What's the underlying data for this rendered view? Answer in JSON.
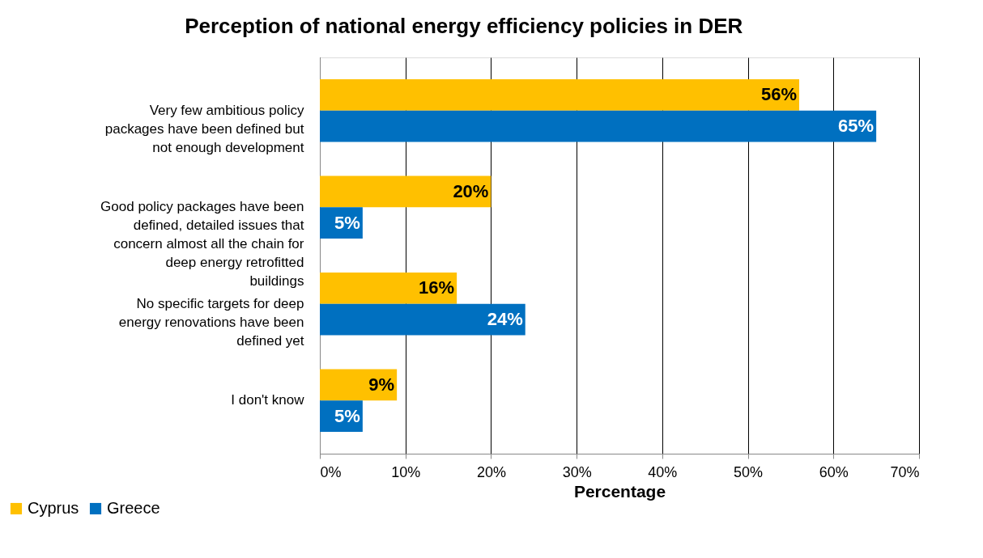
{
  "chart_data": {
    "type": "bar",
    "orientation": "horizontal",
    "title": "Perception of national energy efficiency policies in DER",
    "xlabel": "Percentage",
    "categories": [
      "Very few ambitious policy packages have been defined but not enough development",
      "Good policy packages have been defined, detailed issues that concern almost all the chain for deep energy retrofitted buildings",
      "No specific targets for deep energy renovations have been defined yet",
      "I don't know"
    ],
    "series": [
      {
        "name": "Cyprus",
        "color": "#ffc000",
        "values": [
          56,
          20,
          16,
          9
        ],
        "value_labels": [
          "56%",
          "20%",
          "16%",
          "9%"
        ]
      },
      {
        "name": "Greece",
        "color": "#0070c0",
        "values": [
          65,
          5,
          24,
          5
        ],
        "value_labels": [
          "65%",
          "5%",
          "24%",
          "5%"
        ]
      }
    ],
    "xlim": [
      0,
      70
    ],
    "xticks": [
      {
        "value": 0,
        "label": "0%"
      },
      {
        "value": 10,
        "label": "10%"
      },
      {
        "value": 20,
        "label": "20%"
      },
      {
        "value": 30,
        "label": "30%"
      },
      {
        "value": 40,
        "label": "40%"
      },
      {
        "value": 50,
        "label": "50%"
      },
      {
        "value": 60,
        "label": "60%"
      },
      {
        "value": 70,
        "label": "70%"
      }
    ],
    "grid": "x",
    "legend": "bottom left"
  }
}
